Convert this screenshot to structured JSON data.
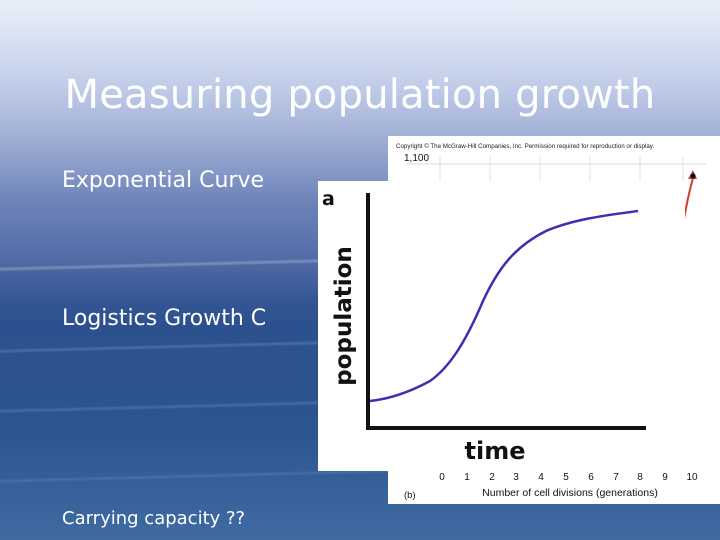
{
  "slide": {
    "title": "Measuring population growth",
    "bullets": {
      "exponential": "Exponential Curve",
      "logistics": "Logistics Growth C",
      "carrying": "Carrying capacity ??"
    }
  },
  "figure_exponential": {
    "copyright": "Copyright © The McGraw-Hill Companies, Inc. Permission required for reproduction or display.",
    "y_top_label": "1,100",
    "panel_label": "(b)",
    "xlabel": "Number of cell divisions (generations)",
    "x_ticks": [
      "0",
      "1",
      "2",
      "3",
      "4",
      "5",
      "6",
      "7",
      "8",
      "9",
      "10"
    ]
  },
  "figure_logistic": {
    "panel_label": "a",
    "ylabel": "population",
    "xlabel": "time"
  },
  "chart_data": [
    {
      "type": "line",
      "xlabel": "Number of cell divisions (generations)",
      "ylabel": "",
      "x_ticks": [
        "0",
        "1",
        "2",
        "3",
        "4",
        "5",
        "6",
        "7",
        "8",
        "9",
        "10"
      ],
      "y_label_top": "1,100",
      "series": [
        {
          "x": [
            9.5,
            10
          ],
          "values": [
            700,
            1100
          ]
        }
      ],
      "colors": {
        "line": "#d23b2e"
      }
    },
    {
      "type": "line",
      "xlabel": "time",
      "ylabel": "population",
      "shape": "logistic",
      "series": [
        {
          "x": [
            0,
            1,
            2,
            3,
            4,
            5,
            6,
            7,
            8,
            9,
            10
          ],
          "values": [
            0.1,
            0.13,
            0.2,
            0.35,
            0.55,
            0.72,
            0.82,
            0.88,
            0.91,
            0.93,
            0.95
          ]
        }
      ],
      "colors": {
        "line": "#3d2fb0"
      }
    }
  ]
}
